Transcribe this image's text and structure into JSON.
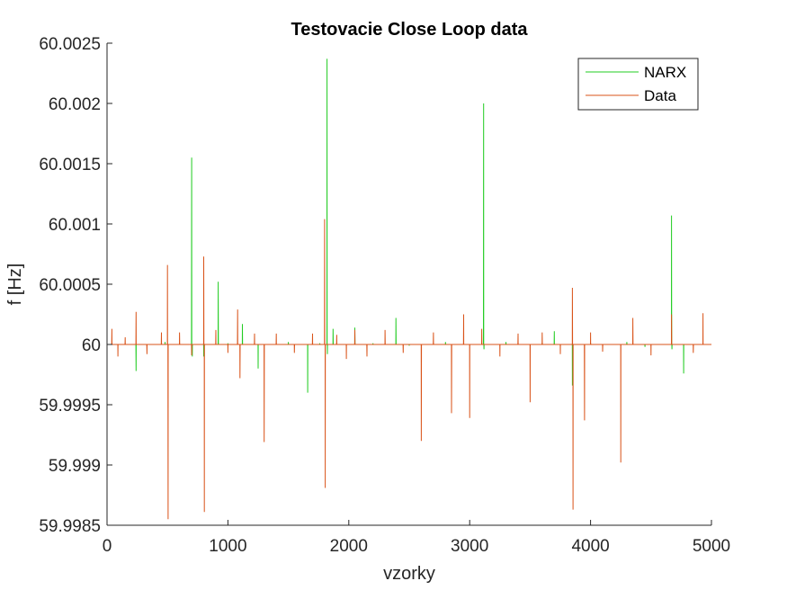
{
  "chart_data": {
    "type": "line",
    "title": "Testovacie Close Loop data",
    "xlabel": "vzorky",
    "ylabel": "f [Hz]",
    "xlim": [
      0,
      5000
    ],
    "ylim": [
      59.9985,
      60.0025
    ],
    "x_ticks": [
      0,
      1000,
      2000,
      3000,
      4000,
      5000
    ],
    "x_tick_labels": [
      "0",
      "1000",
      "2000",
      "3000",
      "4000",
      "5000"
    ],
    "y_ticks": [
      59.9985,
      59.999,
      59.9995,
      60,
      60.0005,
      60.001,
      60.0015,
      60.002,
      60.0025
    ],
    "y_tick_labels": [
      "59.9985",
      "59.999",
      "59.9995",
      "60",
      "60.0005",
      "60.001",
      "60.0015",
      "60.002",
      "60.0025"
    ],
    "grid": false,
    "legend_position": "top-right",
    "baseline": 60.0,
    "series": [
      {
        "name": "NARX",
        "color": "#22cc22",
        "points": [
          [
            0,
            60.0
          ],
          [
            240,
            59.99978
          ],
          [
            480,
            60.00002
          ],
          [
            700,
            60.00155
          ],
          [
            705,
            59.9999
          ],
          [
            800,
            59.9999
          ],
          [
            920,
            60.00052
          ],
          [
            1000,
            60.00001
          ],
          [
            1120,
            60.00017
          ],
          [
            1250,
            59.9998
          ],
          [
            1500,
            60.00002
          ],
          [
            1660,
            59.9996
          ],
          [
            1760,
            60.00001
          ],
          [
            1820,
            60.00237
          ],
          [
            1823,
            59.99992
          ],
          [
            1870,
            60.00013
          ],
          [
            2050,
            60.00014
          ],
          [
            2200,
            60.00001
          ],
          [
            2390,
            60.00022
          ],
          [
            2500,
            59.99999
          ],
          [
            2800,
            60.00002
          ],
          [
            3000,
            60.0
          ],
          [
            3115,
            60.002
          ],
          [
            3118,
            59.99996
          ],
          [
            3300,
            60.00002
          ],
          [
            3600,
            60.00001
          ],
          [
            3700,
            60.00011
          ],
          [
            3850,
            59.99966
          ],
          [
            4000,
            60.00001
          ],
          [
            4300,
            60.00002
          ],
          [
            4450,
            59.99998
          ],
          [
            4670,
            60.00107
          ],
          [
            4673,
            59.99996
          ],
          [
            4770,
            59.99976
          ],
          [
            4990,
            60.0
          ]
        ]
      },
      {
        "name": "Data",
        "color": "#d95319",
        "points": [
          [
            0,
            60.0
          ],
          [
            40,
            60.00013
          ],
          [
            90,
            59.9999
          ],
          [
            150,
            60.00006
          ],
          [
            240,
            60.00027
          ],
          [
            330,
            59.99992
          ],
          [
            450,
            60.0001
          ],
          [
            500,
            60.00066
          ],
          [
            505,
            59.99855
          ],
          [
            600,
            60.0001
          ],
          [
            700,
            59.99991
          ],
          [
            800,
            60.00073
          ],
          [
            805,
            59.99861
          ],
          [
            900,
            60.00012
          ],
          [
            1000,
            59.99993
          ],
          [
            1080,
            60.00029
          ],
          [
            1100,
            59.99972
          ],
          [
            1220,
            60.00009
          ],
          [
            1300,
            59.99919
          ],
          [
            1400,
            60.00009
          ],
          [
            1550,
            59.99993
          ],
          [
            1700,
            60.00009
          ],
          [
            1800,
            60.00104
          ],
          [
            1805,
            59.99881
          ],
          [
            1900,
            60.00008
          ],
          [
            1980,
            59.99988
          ],
          [
            2050,
            60.00012
          ],
          [
            2150,
            59.9999
          ],
          [
            2300,
            60.00012
          ],
          [
            2450,
            59.99993
          ],
          [
            2600,
            59.9992
          ],
          [
            2700,
            60.0001
          ],
          [
            2850,
            59.99943
          ],
          [
            2950,
            60.00025
          ],
          [
            3000,
            59.99939
          ],
          [
            3100,
            60.00013
          ],
          [
            3250,
            59.9999
          ],
          [
            3400,
            60.00009
          ],
          [
            3500,
            59.99952
          ],
          [
            3600,
            60.0001
          ],
          [
            3750,
            59.99992
          ],
          [
            3850,
            60.00047
          ],
          [
            3855,
            59.99863
          ],
          [
            3950,
            59.99937
          ],
          [
            4000,
            60.0001
          ],
          [
            4100,
            59.99994
          ],
          [
            4250,
            59.99902
          ],
          [
            4350,
            60.00022
          ],
          [
            4500,
            59.99991
          ],
          [
            4670,
            60.00025
          ],
          [
            4850,
            59.99993
          ],
          [
            4930,
            60.00026
          ],
          [
            5000,
            60.0
          ]
        ]
      }
    ]
  }
}
